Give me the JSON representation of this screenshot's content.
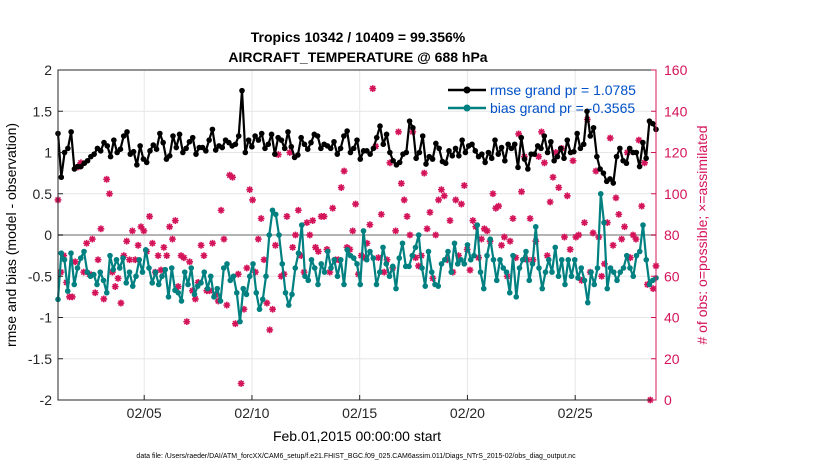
{
  "chart_data": {
    "type": "line",
    "title": "Tropics 10342 / 10409 = 99.356%",
    "subtitle": "AIRCRAFT_TEMPERATURE @ 688 hPa",
    "xlabel": "Feb.01,2015 00:00:00 start",
    "ylabel_left": "rmse and bias (model - observation)",
    "ylabel_right": "# of obs: o=possible; ×=assimilated",
    "ylim_left": [
      -2,
      2
    ],
    "ylim_right": [
      0,
      160
    ],
    "xlim": [
      1.0,
      28.75
    ],
    "x_ticks": [
      {
        "value": 5,
        "label": "02/05"
      },
      {
        "value": 10,
        "label": "02/10"
      },
      {
        "value": 15,
        "label": "02/15"
      },
      {
        "value": 20,
        "label": "02/20"
      },
      {
        "value": 25,
        "label": "02/25"
      }
    ],
    "y_ticks_left": [
      "-2",
      "-1.5",
      "-1",
      "-0.5",
      "0",
      "0.5",
      "1",
      "1.5",
      "2"
    ],
    "y_ticks_right": [
      "0",
      "20",
      "40",
      "60",
      "80",
      "100",
      "120",
      "140",
      "160"
    ],
    "grid": true,
    "legend_position": "top-right",
    "colors": {
      "rmse": "#000000",
      "bias": "#008080",
      "obs": "#d4145a",
      "axis_right": "#d4145a",
      "legend_text": "#0050c8",
      "zero_line": "#b4b4b4"
    },
    "series": [
      {
        "name": "rmse grand pr = 1.0785",
        "axis": "left",
        "values": [
          1.23,
          0.7,
          1.0,
          1.05,
          1.25,
          0.8,
          0.83,
          0.83,
          0.87,
          0.9,
          0.95,
          0.98,
          1.05,
          1.02,
          1.12,
          1.08,
          0.95,
          1.15,
          1.0,
          1.04,
          1.2,
          1.25,
          0.98,
          1.01,
          0.85,
          1.08,
          0.92,
          0.88,
          1.02,
          1.09,
          1.04,
          1.23,
          1.12,
          0.92,
          0.96,
          1.2,
          1.06,
          1.22,
          1.0,
          1.05,
          1.13,
          1.18,
          0.98,
          1.06,
          1.06,
          1.02,
          1.15,
          1.28,
          1.03,
          1.08,
          1.06,
          1.15,
          1.12,
          1.08,
          1.1,
          1.2,
          1.75,
          1.0,
          1.15,
          1.07,
          1.2,
          1.15,
          1.23,
          1.05,
          1.1,
          1.22,
          0.98,
          1.18,
          1.15,
          1.05,
          1.25,
          1.07,
          0.94,
          0.97,
          1.18,
          1.1,
          1.04,
          1.12,
          1.22,
          1.2,
          1.05,
          1.1,
          1.08,
          1.05,
          1.13,
          0.98,
          1.05,
          1.2,
          1.26,
          1.0,
          1.05,
          1.15,
          0.92,
          1.02,
          1.02,
          0.98,
          1.05,
          1.18,
          1.32,
          1.1,
          1.22,
          1.0,
          0.9,
          0.85,
          0.88,
          0.98,
          1.0,
          1.38,
          1.3,
          0.93,
          1.0,
          1.2,
          0.86,
          0.95,
          0.92,
          1.11,
          1.05,
          0.89,
          0.87,
          1.02,
          0.96,
          1.05,
          0.96,
          1.15,
          1.0,
          1.08,
          1.1,
          1.02,
          0.95,
          0.98,
          0.88,
          1.0,
          0.93,
          1.15,
          0.98,
          1.06,
          0.9,
          1.1,
          1.05,
          1.1,
          0.82,
          1.18,
          0.92,
          0.8,
          0.98,
          0.98,
          1.08,
          1.05,
          1.2,
          1.0,
          1.13,
          0.9,
          0.95,
          1.05,
          0.93,
          1.15,
          1.0,
          1.01,
          1.23,
          1.05,
          1.1,
          1.5,
          1.2,
          1.3,
          0.95,
          0.8,
          0.75,
          0.65,
          0.68,
          0.63,
          0.95,
          1.05,
          0.9,
          0.87,
          1.05,
          1.0,
          1.0,
          0.83,
          1.12,
          0.93,
          1.38,
          1.35,
          1.28
        ]
      },
      {
        "name": "bias grand pr = -0.3565",
        "axis": "left",
        "values": [
          -0.78,
          -0.22,
          -0.3,
          -0.68,
          -0.22,
          -0.6,
          -0.4,
          -0.28,
          -0.2,
          -0.45,
          -0.5,
          -0.48,
          -0.6,
          -0.45,
          -0.55,
          -0.7,
          -0.25,
          -0.42,
          -0.3,
          -0.4,
          -0.28,
          -0.58,
          -0.45,
          -0.62,
          -0.5,
          -0.3,
          -0.45,
          -0.18,
          -0.4,
          -0.58,
          -0.45,
          -0.6,
          -0.5,
          -0.42,
          -0.75,
          -0.4,
          -0.67,
          -0.7,
          -0.8,
          -0.45,
          -0.6,
          -0.4,
          -0.72,
          -0.62,
          -0.58,
          -0.45,
          -0.65,
          -0.5,
          -0.75,
          -0.65,
          -0.8,
          -0.4,
          -0.35,
          -0.55,
          -0.5,
          -0.7,
          -1.05,
          -0.65,
          -0.72,
          -0.5,
          -0.35,
          -0.7,
          -0.9,
          -0.78,
          -0.5,
          0.0,
          0.3,
          0.25,
          0.0,
          -0.35,
          -0.7,
          -0.85,
          -0.72,
          -0.4,
          -0.22,
          0.12,
          -0.5,
          -0.55,
          -0.3,
          -0.4,
          -0.6,
          -0.35,
          -0.45,
          -0.2,
          -0.4,
          -0.3,
          -0.5,
          -0.3,
          -0.6,
          -0.18,
          -0.25,
          -0.28,
          -0.35,
          -0.6,
          0.05,
          -0.3,
          -0.2,
          -0.28,
          -0.6,
          -0.45,
          -0.15,
          -0.35,
          -0.5,
          -0.38,
          -0.65,
          -0.28,
          -0.1,
          -0.38,
          -0.38,
          -0.25,
          -0.15,
          0.0,
          -0.4,
          -0.62,
          -0.2,
          -0.45,
          -0.6,
          -0.62,
          -0.35,
          -0.3,
          -0.2,
          -0.45,
          -0.1,
          -0.35,
          -0.3,
          -0.35,
          -0.12,
          -0.3,
          -0.25,
          0.12,
          -0.45,
          -0.65,
          -0.25,
          -0.05,
          -0.3,
          -0.55,
          -0.3,
          -0.4,
          -0.45,
          -0.7,
          -0.25,
          -0.75,
          -0.4,
          -0.3,
          -0.2,
          -0.55,
          -0.35,
          0.1,
          -0.4,
          -0.65,
          -0.45,
          -0.3,
          -0.45,
          -0.15,
          -0.5,
          -0.3,
          -0.6,
          -0.3,
          -0.5,
          -0.3,
          -0.52,
          -0.4,
          -0.55,
          -0.82,
          -0.45,
          -0.6,
          -0.4,
          0.5,
          0.15,
          -0.65,
          -0.4,
          -0.45,
          -0.55,
          -0.45,
          -0.4,
          -0.25,
          -0.4,
          -0.5,
          -0.25,
          -0.2,
          0.12,
          -0.3,
          -0.6,
          -0.55,
          -0.52
        ]
      },
      {
        "name": "# of obs assimilated",
        "axis": "right",
        "values": [
          97,
          62,
          70,
          57,
          50,
          50,
          67,
          113,
          115,
          62,
          76,
          61,
          78,
          52,
          68,
          83,
          49,
          107,
          100,
          62,
          55,
          59,
          47,
          70,
          77,
          68,
          82,
          68,
          75,
          84,
          82,
          72,
          89,
          76,
          62,
          70,
          63,
          74,
          70,
          84,
          78,
          87,
          55,
          70,
          69,
          38,
          67,
          53,
          49,
          57,
          75,
          70,
          53,
          53,
          76,
          51,
          48,
          92,
          78,
          46,
          109,
          108,
          37,
          61,
          8,
          44,
          64,
          102,
          97,
          62,
          78,
          88,
          68,
          47,
          34,
          44,
          75,
          119,
          60,
          61,
          89,
          120,
          74,
          80,
          92,
          70,
          62,
          86,
          80,
          87,
          74,
          72,
          89,
          89,
          73,
          62,
          93,
          68,
          68,
          103,
          111,
          74,
          73,
          82,
          95,
          61,
          70,
          69,
          76,
          85,
          151,
          123,
          69,
          90,
          62,
          68,
          115,
          64,
          82,
          130,
          105,
          97,
          89,
          80,
          130,
          69,
          65,
          70,
          110,
          83,
          91,
          59,
          80,
          97,
          102,
          99,
          68,
          87,
          62,
          97,
          70,
          95,
          104,
          73,
          63,
          87,
          84,
          69,
          78,
          83,
          82,
          77,
          100,
          93,
          94,
          75,
          79,
          60,
          77,
          88,
          69,
          129,
          101,
          118,
          68,
          88,
          68,
          77,
          118,
          130,
          115,
          70,
          96,
          108,
          120,
          103,
          122,
          79,
          99,
          73,
          116,
          79,
          80,
          58,
          86,
          136,
          62,
          81,
          111,
          79,
          60,
          66,
          86,
          127,
          75,
          98,
          90,
          78,
          84,
          120,
          69,
          80,
          78,
          126,
          94,
          115,
          56,
          0,
          54,
          65
        ]
      }
    ]
  }
}
